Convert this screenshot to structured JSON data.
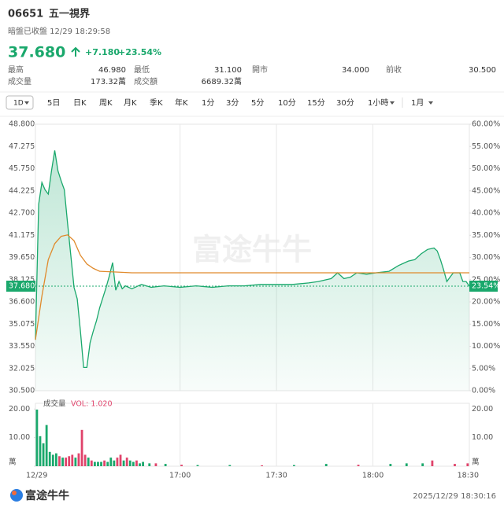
{
  "header": {
    "code": "06651",
    "name": "五一視界",
    "status": "暗盤已收盤 12/29 18:29:58",
    "price": "37.680",
    "change": "+7.180",
    "change_pct": "+23.54%",
    "stats": [
      [
        [
          "最高",
          "46.980"
        ],
        [
          "最低",
          "31.100"
        ],
        [
          "開市",
          "34.000"
        ],
        [
          "前收",
          "30.500"
        ]
      ],
      [
        [
          "成交量",
          "173.32萬"
        ],
        [
          "成交額",
          "6689.32萬"
        ]
      ]
    ]
  },
  "tabs": [
    "1D",
    "5日",
    "日K",
    "周K",
    "月K",
    "季K",
    "年K",
    "1分",
    "3分",
    "5分",
    "10分",
    "15分",
    "30分",
    "1小時",
    "1月"
  ],
  "watermark": "富途牛牛",
  "chart_data": [
    {
      "type": "line",
      "xlim": [
        0,
        135
      ],
      "xticks": [
        {
          "value": 0,
          "label": "12/29"
        },
        {
          "value": 45,
          "label": "17:00"
        },
        {
          "value": 75,
          "label": "17:30"
        },
        {
          "value": 105,
          "label": "18:00"
        },
        {
          "value": 135,
          "label": "18:30"
        }
      ],
      "ylim": [
        30.5,
        48.8
      ],
      "yticks": [
        {
          "value": 48.8,
          "label": "48.800"
        },
        {
          "value": 47.275,
          "label": "47.275"
        },
        {
          "value": 45.75,
          "label": "45.750"
        },
        {
          "value": 44.225,
          "label": "44.225"
        },
        {
          "value": 42.7,
          "label": "42.700"
        },
        {
          "value": 41.175,
          "label": "41.175"
        },
        {
          "value": 39.65,
          "label": "39.650"
        },
        {
          "value": 38.125,
          "label": "38.125"
        },
        {
          "value": 36.6,
          "label": "36.600"
        },
        {
          "value": 35.075,
          "label": "35.075"
        },
        {
          "value": 33.55,
          "label": "33.550"
        },
        {
          "value": 32.025,
          "label": "32.025"
        },
        {
          "value": 30.5,
          "label": "30.500"
        }
      ],
      "y2lim": [
        0,
        60
      ],
      "y2ticks": [
        {
          "value": 60,
          "label": "60.00%"
        },
        {
          "value": 55,
          "label": "55.00%"
        },
        {
          "value": 50,
          "label": "50.00%"
        },
        {
          "value": 45,
          "label": "45.00%"
        },
        {
          "value": 40,
          "label": "40.00%"
        },
        {
          "value": 35,
          "label": "35.00%"
        },
        {
          "value": 30,
          "label": "30.00%"
        },
        {
          "value": 25,
          "label": "25.00%"
        },
        {
          "value": 20,
          "label": "20.00%"
        },
        {
          "value": 15,
          "label": "15.00%"
        },
        {
          "value": 10,
          "label": "10.00%"
        },
        {
          "value": 5,
          "label": "5.00%"
        },
        {
          "value": 0,
          "label": "0.00%"
        }
      ],
      "grid": "x",
      "last_price": {
        "value": 37.68,
        "label": "37.680"
      },
      "last_pct": {
        "value": 23.54,
        "label": "23.54%"
      },
      "series": [
        {
          "color": "#1aa86c",
          "fill": true,
          "x": [
            0,
            1,
            2,
            3,
            4,
            5,
            6,
            7,
            8,
            9,
            10,
            11,
            12,
            13,
            14,
            15,
            16,
            17,
            18,
            19,
            20,
            21,
            22,
            23,
            24,
            25,
            26,
            27,
            28,
            30,
            33,
            36,
            40,
            45,
            50,
            55,
            60,
            65,
            70,
            75,
            80,
            85,
            88,
            90,
            92,
            94,
            96,
            98,
            100,
            103,
            106,
            110,
            113,
            116,
            118,
            120,
            122,
            124,
            125,
            126,
            127,
            128,
            129,
            130,
            132,
            133,
            134,
            135
          ],
          "values": [
            34.0,
            43.3,
            44.8,
            44.3,
            44.0,
            45.6,
            47.0,
            45.6,
            44.9,
            44.3,
            42.0,
            39.8,
            37.6,
            36.8,
            34.6,
            32.1,
            32.1,
            33.8,
            34.6,
            35.3,
            36.2,
            36.9,
            37.6,
            38.4,
            39.3,
            37.4,
            38.0,
            37.5,
            37.7,
            37.5,
            37.8,
            37.6,
            37.7,
            37.6,
            37.7,
            37.6,
            37.7,
            37.7,
            37.8,
            37.8,
            37.8,
            37.9,
            38.0,
            38.1,
            38.2,
            38.6,
            38.2,
            38.3,
            38.6,
            38.5,
            38.6,
            38.7,
            39.1,
            39.4,
            39.5,
            39.9,
            40.2,
            40.3,
            40.1,
            39.5,
            38.8,
            38.0,
            38.3,
            38.6,
            38.6,
            38.0,
            38.0,
            37.68
          ]
        },
        {
          "color": "#e08a2c",
          "fill": false,
          "x": [
            0,
            2,
            4,
            6,
            8,
            10,
            12,
            14,
            16,
            18,
            20,
            25,
            30,
            40,
            60,
            80,
            100,
            120,
            135
          ],
          "values": [
            34.0,
            37.0,
            39.5,
            40.6,
            41.1,
            41.2,
            40.8,
            39.8,
            39.2,
            38.9,
            38.7,
            38.65,
            38.6,
            38.6,
            38.6,
            38.6,
            38.6,
            38.6,
            38.6
          ]
        }
      ]
    },
    {
      "type": "bar",
      "title": "成交量",
      "last_value": {
        "value": 1.02,
        "label": "VOL: 1.020"
      },
      "xlim": [
        0,
        135
      ],
      "ylim": [
        0,
        22
      ],
      "yticks": [
        {
          "value": 20,
          "label": "20.00"
        },
        {
          "value": 10,
          "label": "10.00"
        },
        {
          "value": 0,
          "label": "萬"
        }
      ],
      "x": [
        0,
        1,
        2,
        3,
        4,
        5,
        6,
        7,
        8,
        9,
        10,
        11,
        12,
        13,
        14,
        15,
        16,
        17,
        18,
        19,
        20,
        21,
        22,
        23,
        24,
        25,
        26,
        27,
        28,
        29,
        30,
        31,
        32,
        33,
        35,
        37,
        40,
        45,
        50,
        60,
        70,
        80,
        90,
        100,
        110,
        115,
        120,
        123,
        130,
        134
      ],
      "values": [
        19.8,
        10.5,
        8,
        14.4,
        5,
        4,
        4.5,
        3.5,
        3,
        3,
        3.5,
        4,
        3,
        4.5,
        12.7,
        4,
        3,
        2,
        1.5,
        1.5,
        1.5,
        2,
        1.5,
        3,
        2,
        3,
        4,
        2,
        3,
        2,
        1.5,
        2,
        1,
        1.5,
        1,
        1,
        0.8,
        0.5,
        0.4,
        0.4,
        0.3,
        0.4,
        0.8,
        0.5,
        0.8,
        1,
        1,
        2,
        0.8,
        1
      ],
      "colors": [
        "#1aa86c",
        "#1aa86c",
        "#1aa86c",
        "#1aa86c",
        "#1aa86c",
        "#1aa86c",
        "#1aa86c",
        "#e0436b",
        "#1aa86c",
        "#e0436b",
        "#e0436b",
        "#e0436b",
        "#1aa86c",
        "#e0436b",
        "#e0436b",
        "#e0436b",
        "#1aa86c",
        "#e0436b",
        "#1aa86c",
        "#1aa86c",
        "#1aa86c",
        "#e0436b",
        "#1aa86c",
        "#1aa86c",
        "#1aa86c",
        "#e0436b",
        "#e0436b",
        "#1aa86c",
        "#e0436b",
        "#1aa86c",
        "#1aa86c",
        "#e0436b",
        "#1aa86c",
        "#1aa86c",
        "#1aa86c",
        "#e0436b",
        "#1aa86c",
        "#e0436b",
        "#1aa86c",
        "#1aa86c",
        "#e0436b",
        "#1aa86c",
        "#1aa86c",
        "#e0436b",
        "#1aa86c",
        "#1aa86c",
        "#1aa86c",
        "#e0436b",
        "#e0436b",
        "#e0436b"
      ]
    }
  ],
  "footer": {
    "brand": "富途牛牛",
    "timestamp": "2025/12/29 18:30:16"
  }
}
